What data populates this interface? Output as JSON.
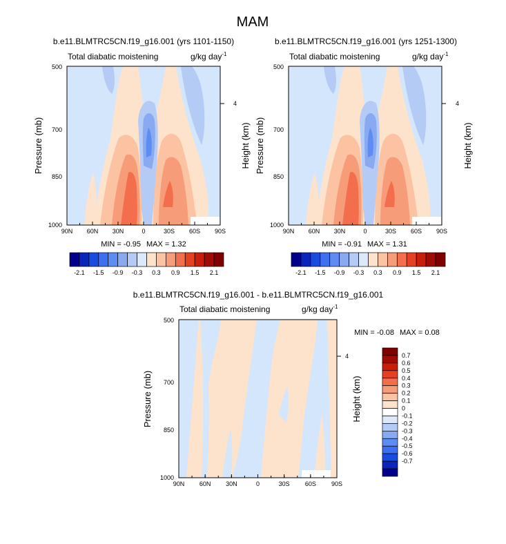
{
  "title": "MAM",
  "colors": {
    "levels_top": [
      "#00008c",
      "#0a24bc",
      "#1a4be0",
      "#3d6ff0",
      "#5f8cf2",
      "#89aaf0",
      "#b4cbf5",
      "#dce9fb",
      "#fde3cc",
      "#fcc3a2",
      "#f79c78",
      "#f26e4c",
      "#e64022",
      "#c81e0b",
      "#a00c05",
      "#800000"
    ],
    "levels_diff": [
      "#00008c",
      "#0a24bc",
      "#1a4be0",
      "#3d6ff0",
      "#5f8cf2",
      "#89aaf0",
      "#b4cbf5",
      "#dce9fb",
      "#ffffff",
      "#fde3cc",
      "#fcc3a2",
      "#f79c78",
      "#f26e4c",
      "#e64022",
      "#c81e0b",
      "#a00c05",
      "#800000"
    ],
    "bg_light_blue": "#d4e6fb",
    "light_peach": "#fde3cc"
  },
  "chart_data": [
    {
      "type": "heatmap",
      "panel": "left",
      "title": "b.e11.BLMTRC5CN.f19_g16.001 (yrs 1101-1150)",
      "subtitle_left": "Total diabatic moistening",
      "subtitle_right": "g/kg day",
      "subtitle_right_sup": "-1",
      "xlabel": "",
      "ylabel": "Pressure (mb)",
      "ylabel_right": "Height (km)",
      "x_ticks": [
        "90N",
        "60N",
        "30N",
        "0",
        "30S",
        "60S",
        "90S"
      ],
      "y_ticks": [
        "500",
        "700",
        "850",
        "1000"
      ],
      "y_tick_values": [
        500,
        700,
        850,
        1000
      ],
      "right_ticks": [
        "4"
      ],
      "ylim": [
        1000,
        500
      ],
      "xlim": [
        90,
        -90
      ],
      "min_label": "MIN =  -0.95",
      "max_label": "MAX =  1.32",
      "min": -0.95,
      "max": 1.32
    },
    {
      "type": "heatmap",
      "panel": "right",
      "title": "b.e11.BLMTRC5CN.f19_g16.001 (yrs 1251-1300)",
      "subtitle_left": "Total diabatic moistening",
      "subtitle_right": "g/kg day",
      "subtitle_right_sup": "-1",
      "xlabel": "",
      "ylabel": "Pressure (mb)",
      "ylabel_right": "Height (km)",
      "x_ticks": [
        "90N",
        "60N",
        "30N",
        "0",
        "30S",
        "60S",
        "90S"
      ],
      "y_ticks": [
        "500",
        "700",
        "850",
        "1000"
      ],
      "y_tick_values": [
        500,
        700,
        850,
        1000
      ],
      "right_ticks": [
        "4"
      ],
      "ylim": [
        1000,
        500
      ],
      "xlim": [
        90,
        -90
      ],
      "min_label": "MIN =  -0.91",
      "max_label": "MAX =  1.31",
      "min": -0.91,
      "max": 1.31
    },
    {
      "type": "heatmap",
      "panel": "difference",
      "title": "b.e11.BLMTRC5CN.f19_g16.001 - b.e11.BLMTRC5CN.f19_g16.001",
      "subtitle_left": "Total diabatic moistening",
      "subtitle_right": "g/kg day",
      "subtitle_right_sup": "-1",
      "xlabel": "",
      "ylabel": "Pressure (mb)",
      "ylabel_right": "Height (km)",
      "x_ticks": [
        "90N",
        "60N",
        "30N",
        "0",
        "30S",
        "60S",
        "90S"
      ],
      "y_ticks": [
        "500",
        "700",
        "850",
        "1000"
      ],
      "y_tick_values": [
        500,
        700,
        850,
        1000
      ],
      "right_ticks": [
        "4"
      ],
      "ylim": [
        1000,
        500
      ],
      "xlim": [
        90,
        -90
      ],
      "min_label": "MIN =  -0.08",
      "max_label": "MAX =  0.08",
      "min": -0.08,
      "max": 0.08
    }
  ],
  "colorbar_top": {
    "labels": [
      "-2.1",
      "-1.5",
      "-0.9",
      "-0.3",
      "0.3",
      "0.9",
      "1.5",
      "2.1"
    ]
  },
  "colorbar_diff": {
    "labels": [
      "0.7",
      "0.6",
      "0.5",
      "0.4",
      "0.3",
      "0.2",
      "0.1",
      "0",
      "-0.1",
      "-0.2",
      "-0.3",
      "-0.4",
      "-0.5",
      "-0.6",
      "-0.7"
    ]
  }
}
